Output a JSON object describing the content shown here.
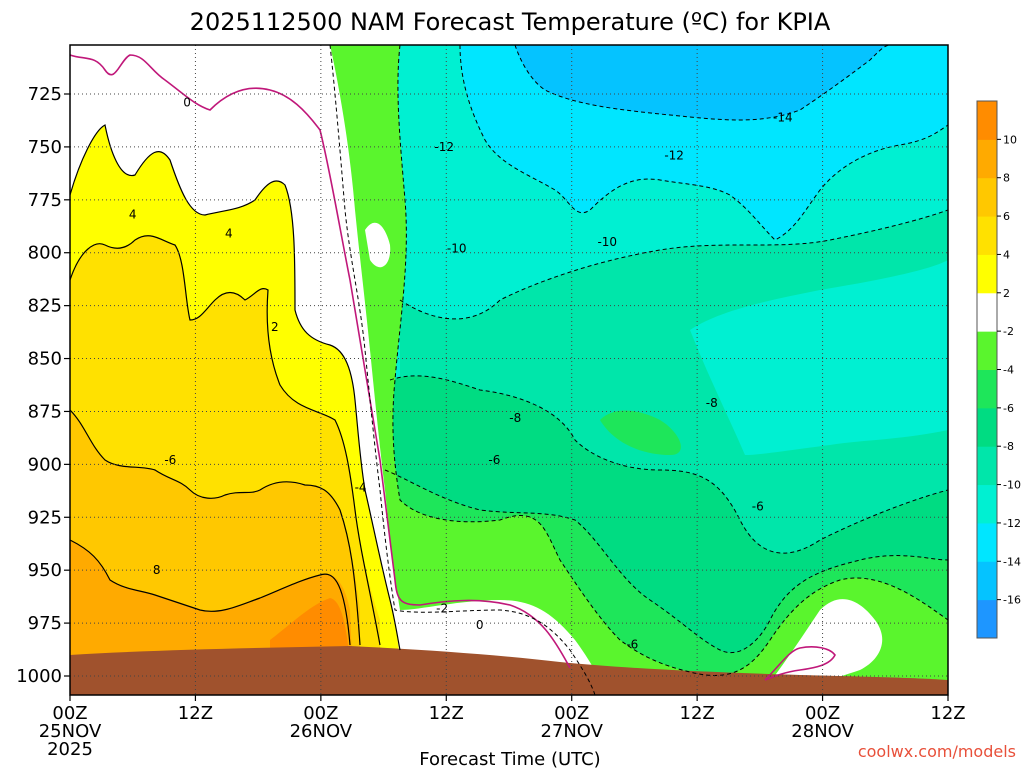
{
  "chart_data": {
    "type": "heatmap",
    "title": "2025112500 NAM Forecast Temperature (ºC) for KPIA",
    "xlabel": "Forecast Time (UTC)",
    "ylabel": "",
    "credit": "coolwx.com/models",
    "x_ticks": [
      {
        "hour": 0,
        "label": "00Z",
        "sub": "25NOV",
        "sub2": "2025"
      },
      {
        "hour": 12,
        "label": "12Z",
        "sub": "",
        "sub2": ""
      },
      {
        "hour": 24,
        "label": "00Z",
        "sub": "26NOV",
        "sub2": ""
      },
      {
        "hour": 36,
        "label": "12Z",
        "sub": "",
        "sub2": ""
      },
      {
        "hour": 48,
        "label": "00Z",
        "sub": "27NOV",
        "sub2": ""
      },
      {
        "hour": 60,
        "label": "12Z",
        "sub": "",
        "sub2": ""
      },
      {
        "hour": 72,
        "label": "00Z",
        "sub": "28NOV",
        "sub2": ""
      },
      {
        "hour": 84,
        "label": "12Z",
        "sub": "",
        "sub2": ""
      }
    ],
    "xlim": [
      0,
      84
    ],
    "y_ticks": [
      "725",
      "750",
      "775",
      "800",
      "825",
      "850",
      "875",
      "900",
      "925",
      "950",
      "975",
      "1000"
    ],
    "ylim": [
      1010,
      700
    ],
    "colorbar": {
      "levels": [
        -18,
        -16,
        -14,
        -12,
        -10,
        -8,
        -6,
        -4,
        -2,
        2,
        4,
        6,
        8,
        10,
        12
      ],
      "labels": [
        "-16",
        "-14",
        "-12",
        "-10",
        "-8",
        "-6",
        "-4",
        "-2",
        "2",
        "4",
        "6",
        "8",
        "10"
      ],
      "colors": [
        "#1e96ff",
        "#05c3ff",
        "#00e6ff",
        "#00f0d2",
        "#00e6aa",
        "#00dc82",
        "#1ee65a",
        "#5af52d",
        "#ffffff",
        "#ffff00",
        "#ffe100",
        "#ffc800",
        "#ffaa00",
        "#ff8c00"
      ]
    },
    "contour_labels": [
      {
        "value": "0",
        "hour": 11.2,
        "p": 729
      },
      {
        "value": "-14",
        "hour": 68.2,
        "p": 736
      },
      {
        "value": "-12",
        "hour": 35.8,
        "p": 750
      },
      {
        "value": "-12",
        "hour": 57.8,
        "p": 754
      },
      {
        "value": "4",
        "hour": 6.0,
        "p": 782
      },
      {
        "value": "-10",
        "hour": 37.0,
        "p": 798
      },
      {
        "value": "-10",
        "hour": 51.4,
        "p": 795
      },
      {
        "value": "4",
        "hour": 15.2,
        "p": 791
      },
      {
        "value": "2",
        "hour": 19.6,
        "p": 835
      },
      {
        "value": "-8",
        "hour": 42.6,
        "p": 878
      },
      {
        "value": "-8",
        "hour": 61.4,
        "p": 871
      },
      {
        "value": "-6",
        "hour": 9.6,
        "p": 898
      },
      {
        "value": "-6",
        "hour": 40.6,
        "p": 898
      },
      {
        "value": "-4",
        "hour": 27.8,
        "p": 911
      },
      {
        "value": "-6",
        "hour": 65.8,
        "p": 920
      },
      {
        "value": "8",
        "hour": 8.3,
        "p": 950
      },
      {
        "value": "-2",
        "hour": 35.6,
        "p": 968
      },
      {
        "value": "0",
        "hour": 39.2,
        "p": 976
      },
      {
        "value": "-6",
        "hour": 53.8,
        "p": 985
      }
    ],
    "grid": true,
    "legend": "right"
  }
}
